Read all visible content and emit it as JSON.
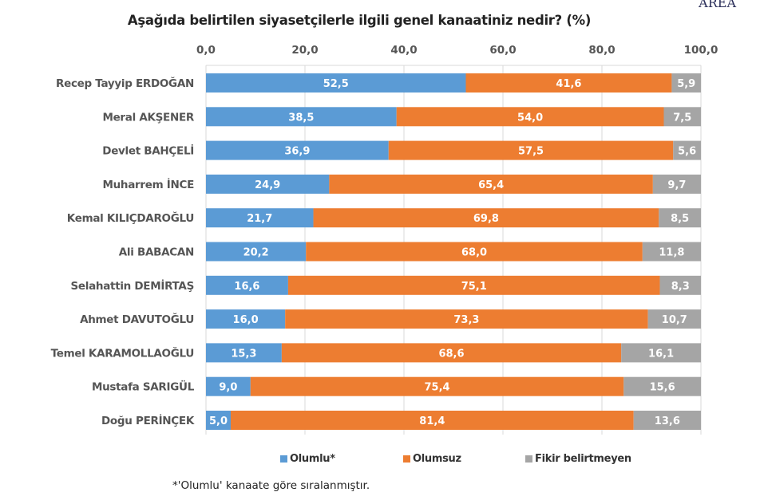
{
  "logo": "AREA",
  "chart_data": {
    "type": "bar",
    "orientation": "horizontal",
    "stacked": true,
    "title": "Aşağıda belirtilen siyasetçilerle ilgili genel kanaatiniz nedir? (%)",
    "xlim": [
      0,
      100
    ],
    "xticks": [
      "0,0",
      "20,0",
      "40,0",
      "60,0",
      "80,0",
      "100,0"
    ],
    "grid": true,
    "legend_position": "bottom",
    "categories": [
      "Recep Tayyip ERDOĞAN",
      "Meral AKŞENER",
      "Devlet BAHÇELİ",
      "Muharrem İNCE",
      "Kemal KILIÇDAROĞLU",
      "Ali BABACAN",
      "Selahattin DEMİRTAŞ",
      "Ahmet DAVUTOĞLU",
      "Temel KARAMOLLAOĞLU",
      "Mustafa SARIGÜL",
      "Doğu PERİNÇEK"
    ],
    "series": [
      {
        "name": "Olumlu*",
        "color": "#5b9bd5",
        "values": [
          52.5,
          38.5,
          36.9,
          24.9,
          21.7,
          20.2,
          16.6,
          16.0,
          15.3,
          9.0,
          5.0
        ]
      },
      {
        "name": "Olumsuz",
        "color": "#ed7d31",
        "values": [
          41.6,
          54.0,
          57.5,
          65.4,
          69.8,
          68.0,
          75.1,
          73.3,
          68.6,
          75.4,
          81.4
        ]
      },
      {
        "name": "Fikir belirtmeyen",
        "color": "#a5a5a5",
        "values": [
          5.9,
          7.5,
          5.6,
          9.7,
          8.5,
          11.8,
          8.3,
          10.7,
          16.1,
          15.6,
          13.6
        ]
      }
    ],
    "footnote": "*'Olumlu' kanaate göre sıralanmıştır."
  }
}
